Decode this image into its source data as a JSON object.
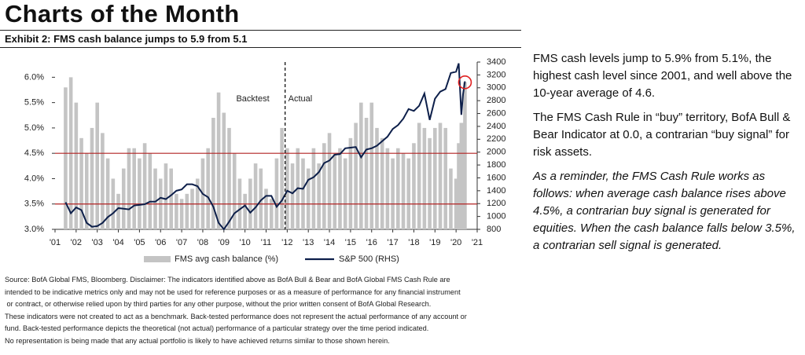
{
  "header": {
    "title": "Charts of the Month",
    "exhibit": "Exhibit 2: FMS cash balance jumps to 5.9 from 5.1"
  },
  "chart_data": {
    "type": "bar-line",
    "x": [
      2001.5,
      2001.75,
      2002,
      2002.25,
      2002.5,
      2002.75,
      2003,
      2003.25,
      2003.5,
      2003.75,
      2004,
      2004.25,
      2004.5,
      2004.75,
      2005,
      2005.25,
      2005.5,
      2005.75,
      2006,
      2006.25,
      2006.5,
      2006.75,
      2007,
      2007.25,
      2007.5,
      2007.75,
      2008,
      2008.25,
      2008.5,
      2008.75,
      2009,
      2009.25,
      2009.5,
      2009.75,
      2010,
      2010.25,
      2010.5,
      2010.75,
      2011,
      2011.25,
      2011.5,
      2011.75,
      2012,
      2012.25,
      2012.5,
      2012.75,
      2013,
      2013.25,
      2013.5,
      2013.75,
      2014,
      2014.25,
      2014.5,
      2014.75,
      2015,
      2015.25,
      2015.5,
      2015.75,
      2016,
      2016.25,
      2016.5,
      2016.75,
      2017,
      2017.25,
      2017.5,
      2017.75,
      2018,
      2018.25,
      2018.5,
      2018.75,
      2019,
      2019.25,
      2019.5,
      2019.75,
      2020,
      2020.125,
      2020.25,
      2020.33,
      2020.42
    ],
    "series": [
      {
        "name": "FMS avg cash balance (%)",
        "color": "#c4c4c4",
        "kind": "bar",
        "values": [
          5.8,
          6.0,
          5.5,
          4.8,
          4.5,
          5.0,
          5.5,
          4.9,
          4.4,
          4.0,
          3.7,
          4.2,
          4.6,
          4.6,
          4.4,
          4.7,
          4.5,
          4.2,
          4.0,
          4.3,
          4.2,
          3.7,
          3.6,
          3.7,
          3.8,
          4.0,
          4.4,
          4.6,
          5.2,
          5.7,
          5.3,
          5.0,
          4.5,
          4.0,
          3.7,
          4.0,
          4.3,
          4.2,
          3.8,
          3.6,
          4.4,
          5.0,
          4.6,
          4.3,
          4.6,
          4.4,
          4.2,
          4.6,
          4.3,
          4.7,
          4.9,
          4.5,
          4.6,
          4.4,
          4.8,
          5.1,
          5.5,
          5.2,
          5.5,
          5.0,
          4.8,
          4.6,
          4.4,
          4.6,
          4.5,
          4.4,
          4.7,
          5.1,
          5.0,
          4.8,
          5.0,
          5.1,
          5.0,
          4.2,
          4.0,
          4.7,
          5.1,
          5.1,
          5.9
        ]
      },
      {
        "name": "S&P 500 (RHS)",
        "color": "#0d1f4a",
        "kind": "line",
        "axis": "y2",
        "values": [
          1220,
          1050,
          1140,
          1100,
          900,
          840,
          850,
          900,
          990,
          1050,
          1130,
          1120,
          1110,
          1170,
          1180,
          1190,
          1230,
          1230,
          1290,
          1270,
          1330,
          1400,
          1420,
          1500,
          1500,
          1470,
          1350,
          1300,
          1150,
          900,
          800,
          920,
          1050,
          1110,
          1170,
          1060,
          1140,
          1250,
          1320,
          1320,
          1150,
          1250,
          1400,
          1360,
          1440,
          1430,
          1570,
          1610,
          1690,
          1830,
          1870,
          1960,
          1970,
          2060,
          2070,
          2080,
          1920,
          2040,
          2060,
          2100,
          2170,
          2240,
          2360,
          2420,
          2520,
          2670,
          2640,
          2720,
          2910,
          2500,
          2830,
          2940,
          2980,
          3230,
          3250,
          3380,
          2580,
          2900,
          3100
        ]
      }
    ],
    "xlim": [
      2001,
      2021
    ],
    "xticks": [
      {
        "value": 2001,
        "label": "'01"
      },
      {
        "value": 2002,
        "label": "'02"
      },
      {
        "value": 2003,
        "label": "'03"
      },
      {
        "value": 2004,
        "label": "'04"
      },
      {
        "value": 2005,
        "label": "'05"
      },
      {
        "value": 2006,
        "label": "'06"
      },
      {
        "value": 2007,
        "label": "'07"
      },
      {
        "value": 2008,
        "label": "'08"
      },
      {
        "value": 2009,
        "label": "'09"
      },
      {
        "value": 2010,
        "label": "'10"
      },
      {
        "value": 2011,
        "label": "'11"
      },
      {
        "value": 2012,
        "label": "'12"
      },
      {
        "value": 2013,
        "label": "'13"
      },
      {
        "value": 2014,
        "label": "'14"
      },
      {
        "value": 2015,
        "label": "'15"
      },
      {
        "value": 2016,
        "label": "'16"
      },
      {
        "value": 2017,
        "label": "'17"
      },
      {
        "value": 2018,
        "label": "'18"
      },
      {
        "value": 2019,
        "label": "'19"
      },
      {
        "value": 2020,
        "label": "'20"
      },
      {
        "value": 2021,
        "label": "'21"
      }
    ],
    "ylim": [
      3,
      6.3
    ],
    "yticks": [
      {
        "value": 3,
        "label": "3.0%"
      },
      {
        "value": 3.5,
        "label": "3.5%"
      },
      {
        "value": 4,
        "label": "4.0%"
      },
      {
        "value": 4.5,
        "label": "4.5%"
      },
      {
        "value": 5,
        "label": "5.0%"
      },
      {
        "value": 5.5,
        "label": "5.5%"
      },
      {
        "value": 6,
        "label": "6.0%"
      }
    ],
    "y2lim": [
      800,
      3400
    ],
    "y2ticks": [
      800,
      1000,
      1200,
      1400,
      1600,
      1800,
      2000,
      2200,
      2400,
      2600,
      2800,
      3000,
      3200,
      3400
    ],
    "reference_lines": {
      "values": [
        4.5,
        3.5
      ],
      "color": "#b22222"
    },
    "divider": {
      "x": 2011.9,
      "left_label": "Backtest",
      "right_label": "Actual"
    },
    "highlight_color": "#e02020",
    "grid": false
  },
  "commentary": [
    "FMS cash levels jump to 5.9% from 5.1%, the highest cash level since 2001, and well above the 10-year average of 4.6.",
    "The FMS Cash Rule in “buy” territory, BofA Bull & Bear Indicator at 0.0, a contrarian “buy signal” for risk assets.",
    "As a reminder, the FMS Cash Rule works as follows: when average cash balance rises above 4.5%, a contrarian buy signal is generated for equities. When the cash balance falls below 3.5%, a contrarian sell signal is generated."
  ],
  "source": [
    "Source: BofA Global FMS, Bloomberg. Disclaimer: The indicators identified above as BofA Bull & Bear and BofA Global FMS Cash Rule are",
    "intended to be indicative metrics only and may not be used for reference purposes or as a measure of performance for any financial instrument",
    " or contract, or otherwise relied upon by third parties for any other purpose, without the prior written consent of BofA Global Research.",
    "These indicators were not created to act as a benchmark. Back-tested performance does not represent the actual performance of any account or",
    "fund. Back-tested performance depicts the theoretical (not actual) performance of a particular strategy over the time period indicated.",
    "No representation is being made that any actual portfolio is likely to have achieved returns similar to those shown herein."
  ]
}
